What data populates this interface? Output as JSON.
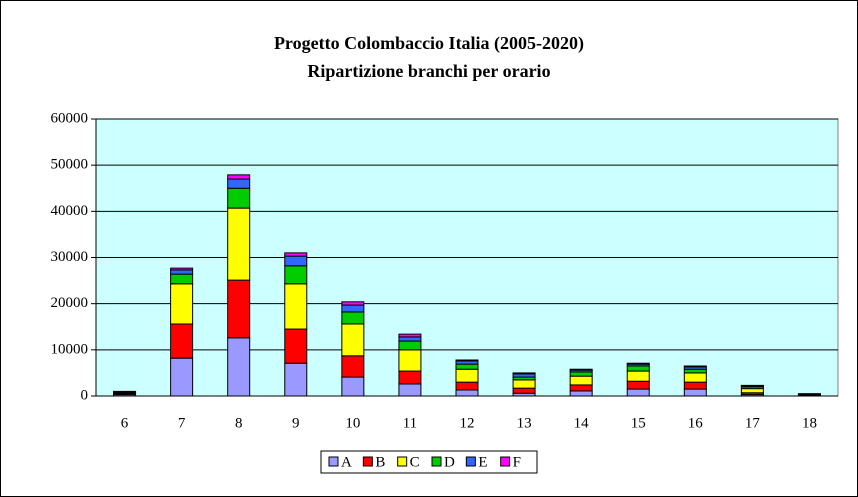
{
  "chart_data": {
    "type": "stacked-bar",
    "title": "Progetto Colombaccio Italia (2005-2020)",
    "subtitle": "Ripartizione branchi per orario",
    "categories": [
      "6",
      "7",
      "8",
      "9",
      "10",
      "11",
      "12",
      "13",
      "14",
      "15",
      "16",
      "17",
      "18"
    ],
    "series": [
      {
        "name": "A",
        "color": "#9999ff",
        "values": [
          300,
          8200,
          12600,
          7100,
          4100,
          2600,
          1300,
          600,
          1100,
          1500,
          1500,
          300,
          100
        ]
      },
      {
        "name": "B",
        "color": "#ff0000",
        "values": [
          200,
          7400,
          12500,
          7400,
          4600,
          2800,
          1700,
          1100,
          1300,
          1700,
          1500,
          400,
          100
        ]
      },
      {
        "name": "C",
        "color": "#ffff00",
        "values": [
          200,
          8700,
          15600,
          9800,
          6900,
          4600,
          2800,
          1800,
          1900,
          2200,
          2000,
          900,
          100
        ]
      },
      {
        "name": "D",
        "color": "#00cc00",
        "values": [
          100,
          2100,
          4300,
          3900,
          2600,
          1900,
          1100,
          600,
          900,
          1100,
          800,
          400,
          100
        ]
      },
      {
        "name": "E",
        "color": "#3366ff",
        "values": [
          100,
          900,
          2000,
          2100,
          1500,
          900,
          700,
          700,
          400,
          400,
          500,
          200,
          50
        ]
      },
      {
        "name": "F",
        "color": "#ff00ff",
        "values": [
          100,
          400,
          900,
          700,
          700,
          600,
          200,
          200,
          200,
          200,
          200,
          100,
          50
        ]
      }
    ],
    "ylim": [
      0,
      60000
    ],
    "yticks": [
      0,
      10000,
      20000,
      30000,
      40000,
      50000,
      60000
    ],
    "grid": true,
    "legend": "bottom"
  }
}
